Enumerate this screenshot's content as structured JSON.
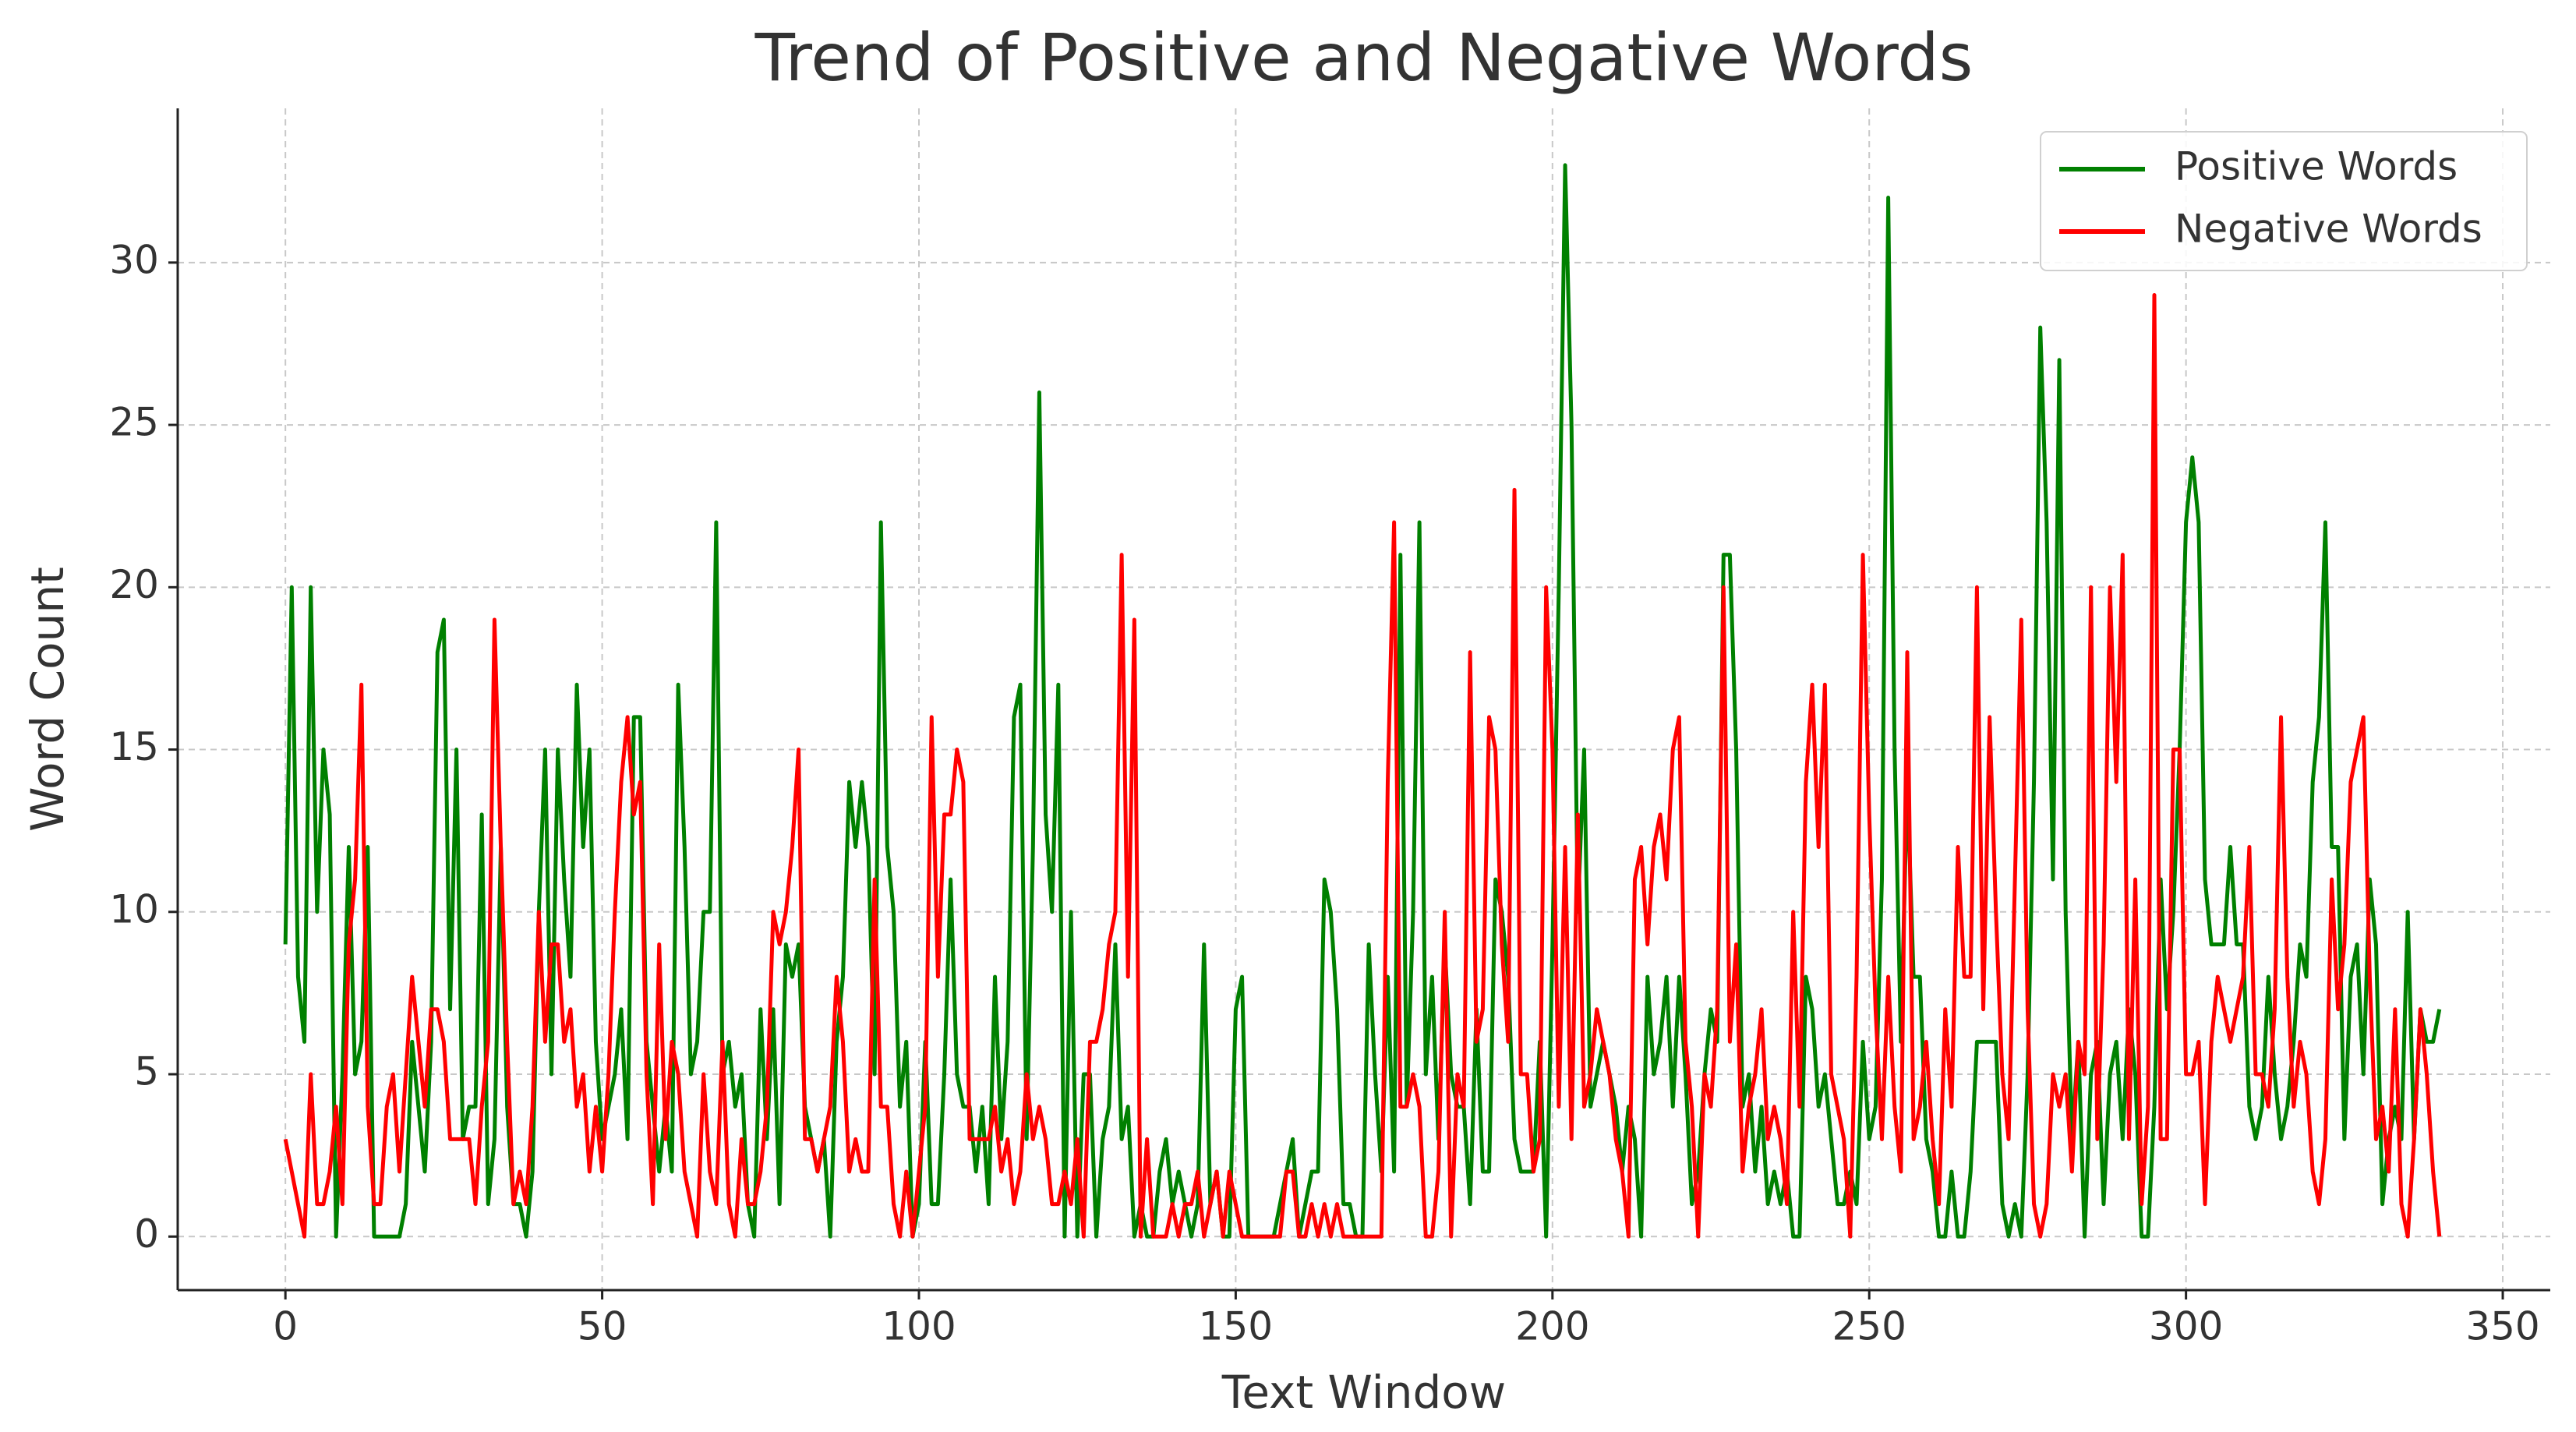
{
  "chart_data": {
    "type": "line",
    "title": "Trend of Positive and Negative Words",
    "x_label": "Text Window",
    "y_label": "Word Count",
    "x": [
      0,
      1,
      2,
      3,
      4,
      5,
      6,
      7,
      8,
      9,
      10,
      11,
      12,
      13,
      14,
      15,
      16,
      17,
      18,
      19,
      20,
      21,
      22,
      23,
      24,
      25,
      26,
      27,
      28,
      29,
      30,
      31,
      32,
      33,
      34,
      35,
      36,
      37,
      38,
      39,
      40,
      41,
      42,
      43,
      44,
      45,
      46,
      47,
      48,
      49,
      50,
      51,
      52,
      53,
      54,
      55,
      56,
      57,
      58,
      59,
      60,
      61,
      62,
      63,
      64,
      65,
      66,
      67,
      68,
      69,
      70,
      71,
      72,
      73,
      74,
      75,
      76,
      77,
      78,
      79,
      80,
      81,
      82,
      83,
      84,
      85,
      86,
      87,
      88,
      89,
      90,
      91,
      92,
      93,
      94,
      95,
      96,
      97,
      98,
      99,
      100,
      101,
      102,
      103,
      104,
      105,
      106,
      107,
      108,
      109,
      110,
      111,
      112,
      113,
      114,
      115,
      116,
      117,
      118,
      119,
      120,
      121,
      122,
      123,
      124,
      125,
      126,
      127,
      128,
      129,
      130,
      131,
      132,
      133,
      134,
      135,
      136,
      137,
      138,
      139,
      140,
      141,
      142,
      143,
      144,
      145,
      146,
      147,
      148,
      149,
      150,
      151,
      152,
      153,
      154,
      155,
      156,
      157,
      158,
      159,
      160,
      161,
      162,
      163,
      164,
      165,
      166,
      167,
      168,
      169,
      170,
      171,
      172,
      173,
      174,
      175,
      176,
      177,
      178,
      179,
      180,
      181,
      182,
      183,
      184,
      185,
      186,
      187,
      188,
      189,
      190,
      191,
      192,
      193,
      194,
      195,
      196,
      197,
      198,
      199,
      200,
      201,
      202,
      203,
      204,
      205,
      206,
      207,
      208,
      209,
      210,
      211,
      212,
      213,
      214,
      215,
      216,
      217,
      218,
      219,
      220,
      221,
      222,
      223,
      224,
      225,
      226,
      227,
      228,
      229,
      230,
      231,
      232,
      233,
      234,
      235,
      236,
      237,
      238,
      239,
      240,
      241,
      242,
      243,
      244,
      245,
      246,
      247,
      248,
      249,
      250,
      251,
      252,
      253,
      254,
      255,
      256,
      257,
      258,
      259,
      260,
      261,
      262,
      263,
      264,
      265,
      266,
      267,
      268,
      269,
      270,
      271,
      272,
      273,
      274,
      275,
      276,
      277,
      278,
      279,
      280,
      281,
      282,
      283,
      284,
      285,
      286,
      287,
      288,
      289,
      290,
      291,
      292,
      293,
      294,
      295,
      296,
      297,
      298,
      299,
      300,
      301,
      302,
      303,
      304,
      305,
      306,
      307,
      308,
      309,
      310,
      311,
      312,
      313,
      314,
      315,
      316,
      317,
      318,
      319,
      320,
      321,
      322,
      323,
      324,
      325,
      326,
      327,
      328,
      329,
      330,
      331,
      332,
      333,
      334,
      335,
      336,
      337,
      338,
      339,
      340
    ],
    "series": [
      {
        "name": "Positive Words",
        "color": "#008000",
        "values": [
          9,
          20,
          8,
          6,
          20,
          10,
          15,
          13,
          0,
          5,
          12,
          5,
          6,
          12,
          0,
          0,
          0,
          0,
          0,
          1,
          6,
          4,
          2,
          6,
          18,
          19,
          7,
          15,
          3,
          4,
          4,
          13,
          1,
          3,
          12,
          4,
          1,
          1,
          0,
          2,
          10,
          15,
          5,
          15,
          11,
          8,
          17,
          12,
          15,
          6,
          3,
          4,
          5,
          7,
          3,
          16,
          16,
          6,
          4,
          2,
          4,
          2,
          17,
          12,
          5,
          6,
          10,
          10,
          22,
          5,
          6,
          4,
          5,
          1,
          0,
          7,
          3,
          7,
          1,
          9,
          8,
          9,
          4,
          3,
          2,
          3,
          0,
          6,
          8,
          14,
          12,
          14,
          12,
          5,
          22,
          12,
          10,
          4,
          6,
          0,
          1,
          6,
          1,
          1,
          5,
          11,
          5,
          4,
          4,
          2,
          4,
          1,
          8,
          3,
          6,
          16,
          17,
          3,
          12,
          26,
          13,
          10,
          17,
          0,
          10,
          0,
          5,
          5,
          0,
          3,
          4,
          9,
          3,
          4,
          0,
          1,
          0,
          0,
          2,
          3,
          1,
          2,
          1,
          0,
          1,
          9,
          1,
          2,
          0,
          0,
          7,
          8,
          0,
          0,
          0,
          0,
          0,
          1,
          2,
          3,
          0,
          1,
          2,
          2,
          11,
          10,
          7,
          1,
          1,
          0,
          0,
          9,
          5,
          2,
          8,
          2,
          21,
          4,
          10,
          22,
          5,
          8,
          3,
          9,
          5,
          4,
          4,
          1,
          7,
          2,
          2,
          11,
          10,
          8,
          3,
          2,
          2,
          2,
          6,
          0,
          9,
          20,
          33,
          25,
          10,
          15,
          4,
          5,
          6,
          5,
          4,
          2,
          4,
          3,
          0,
          8,
          5,
          6,
          8,
          4,
          8,
          5,
          1,
          2,
          5,
          7,
          6,
          21,
          21,
          15,
          4,
          5,
          2,
          4,
          1,
          2,
          1,
          2,
          0,
          0,
          8,
          7,
          4,
          5,
          3,
          1,
          1,
          2,
          1,
          6,
          3,
          4,
          11,
          32,
          15,
          6,
          14,
          8,
          8,
          3,
          2,
          0,
          0,
          2,
          0,
          0,
          2,
          6,
          6,
          6,
          6,
          1,
          0,
          1,
          0,
          5,
          14,
          28,
          22,
          11,
          27,
          10,
          3,
          6,
          0,
          5,
          6,
          1,
          5,
          6,
          3,
          7,
          5,
          0,
          0,
          4,
          11,
          7,
          10,
          15,
          22,
          24,
          22,
          11,
          9,
          9,
          9,
          12,
          9,
          9,
          4,
          3,
          4,
          8,
          5,
          3,
          4,
          6,
          9,
          8,
          14,
          16,
          22,
          12,
          12,
          3,
          8,
          9,
          5,
          11,
          9,
          1,
          3,
          4,
          3,
          10,
          3,
          7,
          6,
          6,
          7
        ]
      },
      {
        "name": "Negative Words",
        "color": "#ff0000",
        "values": [
          3,
          2,
          1,
          0,
          5,
          1,
          1,
          2,
          4,
          1,
          9,
          11,
          17,
          4,
          1,
          1,
          4,
          5,
          2,
          5,
          8,
          6,
          4,
          7,
          7,
          6,
          3,
          3,
          3,
          3,
          1,
          4,
          6,
          19,
          12,
          6,
          1,
          2,
          1,
          4,
          10,
          6,
          9,
          9,
          6,
          7,
          4,
          5,
          2,
          4,
          2,
          5,
          10,
          14,
          16,
          13,
          14,
          5,
          1,
          9,
          3,
          6,
          5,
          2,
          1,
          0,
          5,
          2,
          1,
          6,
          1,
          0,
          3,
          1,
          1,
          2,
          4,
          10,
          9,
          10,
          12,
          15,
          3,
          3,
          2,
          3,
          4,
          8,
          6,
          2,
          3,
          2,
          2,
          11,
          4,
          4,
          1,
          0,
          2,
          0,
          2,
          4,
          16,
          8,
          13,
          13,
          15,
          14,
          3,
          3,
          3,
          3,
          4,
          2,
          3,
          1,
          2,
          5,
          3,
          4,
          3,
          1,
          1,
          2,
          1,
          3,
          0,
          6,
          6,
          7,
          9,
          10,
          21,
          8,
          19,
          0,
          3,
          0,
          0,
          0,
          1,
          0,
          1,
          1,
          2,
          0,
          1,
          2,
          0,
          2,
          1,
          0,
          0,
          0,
          0,
          0,
          0,
          0,
          2,
          2,
          0,
          0,
          1,
          0,
          1,
          0,
          1,
          0,
          0,
          0,
          0,
          0,
          0,
          0,
          14,
          22,
          4,
          4,
          5,
          4,
          0,
          0,
          2,
          10,
          0,
          5,
          4,
          18,
          6,
          7,
          16,
          15,
          9,
          6,
          23,
          5,
          5,
          2,
          3,
          20,
          15,
          4,
          12,
          3,
          13,
          4,
          5,
          7,
          6,
          5,
          3,
          2,
          0,
          11,
          12,
          9,
          12,
          13,
          11,
          15,
          16,
          6,
          4,
          0,
          5,
          4,
          7,
          20,
          6,
          9,
          2,
          4,
          5,
          7,
          3,
          4,
          3,
          1,
          10,
          4,
          14,
          17,
          12,
          17,
          5,
          4,
          3,
          0,
          8,
          21,
          13,
          7,
          3,
          8,
          4,
          2,
          18,
          3,
          4,
          6,
          3,
          1,
          7,
          4,
          12,
          8,
          8,
          20,
          7,
          16,
          10,
          5,
          3,
          11,
          19,
          7,
          1,
          0,
          1,
          5,
          4,
          5,
          2,
          6,
          5,
          20,
          3,
          9,
          20,
          14,
          21,
          3,
          11,
          1,
          4,
          29,
          3,
          3,
          15,
          15,
          5,
          5,
          6,
          1,
          6,
          8,
          7,
          6,
          7,
          8,
          12,
          5,
          5,
          4,
          7,
          16,
          8,
          4,
          6,
          5,
          2,
          1,
          3,
          11,
          7,
          9,
          14,
          15,
          16,
          8,
          3,
          4,
          2,
          7,
          1,
          0,
          3,
          7,
          5,
          2,
          0
        ]
      }
    ],
    "xlim": [
      -17,
      357.5
    ],
    "ylim": [
      -1.65,
      34.75
    ],
    "xticks": [
      0,
      50,
      100,
      150,
      200,
      250,
      300,
      350
    ],
    "yticks": [
      0,
      5,
      10,
      15,
      20,
      25,
      30
    ],
    "grid": true,
    "legend": "upper right"
  }
}
